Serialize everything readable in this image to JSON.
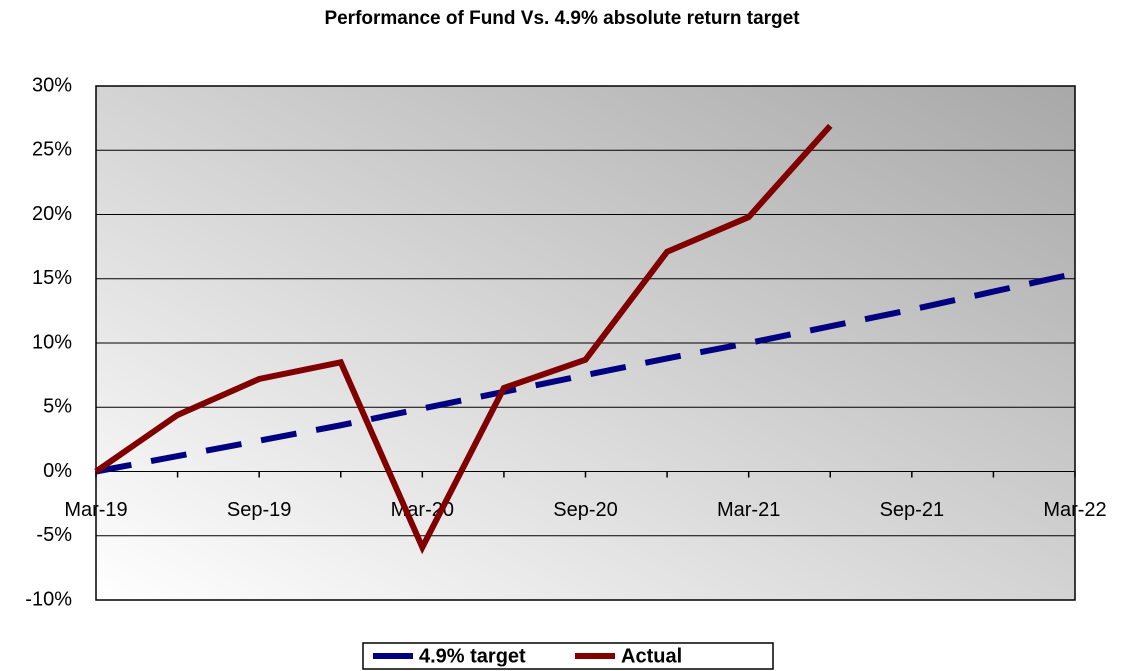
{
  "chart_data": {
    "type": "line",
    "title": "Performance of Fund Vs. 4.9% absolute return target",
    "categories": [
      "Mar-19",
      null,
      "Sep-19",
      null,
      "Mar-20",
      null,
      "Sep-20",
      null,
      "Mar-21",
      null,
      "Sep-21",
      null,
      "Mar-22"
    ],
    "series": [
      {
        "name": "4.9% target",
        "color": "#000080",
        "dash": true,
        "values": [
          0,
          1.2,
          2.4,
          3.6,
          4.9,
          6.2,
          7.5,
          8.8,
          10.0,
          11.3,
          12.6,
          14.0,
          15.4
        ]
      },
      {
        "name": "Actual",
        "color": "#800000",
        "dash": false,
        "values": [
          0,
          4.4,
          7.2,
          8.5,
          -5.9,
          6.5,
          8.7,
          17.1,
          19.8,
          26.9,
          null,
          null,
          null
        ]
      }
    ],
    "ylim": [
      -10,
      30
    ],
    "yticks": [
      {
        "value": -10,
        "label": "-10%"
      },
      {
        "value": -5,
        "label": "-5%"
      },
      {
        "value": 0,
        "label": "0%"
      },
      {
        "value": 5,
        "label": "5%"
      },
      {
        "value": 10,
        "label": "10%"
      },
      {
        "value": 15,
        "label": "15%"
      },
      {
        "value": 20,
        "label": "20%"
      },
      {
        "value": 25,
        "label": "25%"
      },
      {
        "value": 30,
        "label": "30%"
      }
    ],
    "grid": true,
    "legend": "bottom"
  }
}
